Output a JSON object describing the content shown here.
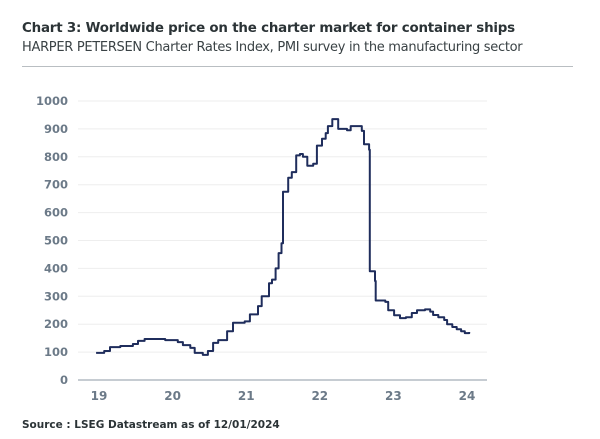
{
  "header": {
    "title": "Chart 3: Worldwide price on the charter market for container ships",
    "subtitle": "HARPER PETERSEN Charter Rates Index, PMI survey in the manufacturing sector"
  },
  "footer": {
    "source": "Source : LSEG Datastream as of 12/01/2024"
  },
  "colors": {
    "line": "#1f2d5c",
    "axis": "#8e9aa6",
    "grid": "#eeeeee",
    "tick_text": "#6c7a88"
  },
  "chart_data": {
    "type": "line",
    "title": "Chart 3: Worldwide price on the charter market for container ships",
    "subtitle": "HARPER PETERSEN Charter Rates Index, PMI survey in the manufacturing sector",
    "xlabel": "",
    "ylabel": "",
    "xlim": [
      2018.7,
      2024.27
    ],
    "ylim": [
      0,
      1000
    ],
    "grid": true,
    "legend": "none",
    "x_ticks": [
      2019,
      2020,
      2021,
      2022,
      2023,
      2024
    ],
    "x_tick_labels": [
      "19",
      "20",
      "21",
      "22",
      "23",
      "24"
    ],
    "y_ticks": [
      0,
      100,
      200,
      300,
      400,
      500,
      600,
      700,
      800,
      900,
      1000
    ],
    "y_tick_labels": [
      "0",
      "100",
      "200",
      "300",
      "400",
      "500",
      "600",
      "700",
      "800",
      "900",
      "1000"
    ],
    "series": [
      {
        "name": "HARPER PETERSEN Charter Rates Index",
        "x": [
          2018.96,
          2019.07,
          2019.15,
          2019.29,
          2019.46,
          2019.53,
          2019.62,
          2019.9,
          2020.07,
          2020.14,
          2020.24,
          2020.3,
          2020.41,
          2020.48,
          2020.55,
          2020.62,
          2020.74,
          2020.82,
          2020.98,
          2021.05,
          2021.16,
          2021.21,
          2021.31,
          2021.35,
          2021.4,
          2021.44,
          2021.48,
          2021.5,
          2021.57,
          2021.62,
          2021.68,
          2021.73,
          2021.77,
          2021.83,
          2021.91,
          2021.96,
          2022.03,
          2022.08,
          2022.11,
          2022.17,
          2022.23,
          2022.25,
          2022.37,
          2022.42,
          2022.49,
          2022.57,
          2022.6,
          2022.67,
          2022.68,
          2022.75,
          2022.76,
          2022.89,
          2022.93,
          2023.01,
          2023.09,
          2023.17,
          2023.25,
          2023.32,
          2023.43,
          2023.5,
          2023.54,
          2023.61,
          2023.69,
          2023.73,
          2023.8,
          2023.86,
          2023.92,
          2023.97,
          2024.03
        ],
        "values": [
          97,
          104,
          118,
          122,
          129,
          140,
          147,
          143,
          136,
          125,
          115,
          97,
          90,
          104,
          133,
          143,
          175,
          205,
          210,
          235,
          265,
          300,
          347,
          360,
          400,
          455,
          490,
          675,
          725,
          745,
          805,
          810,
          800,
          768,
          775,
          840,
          865,
          885,
          910,
          935,
          935,
          900,
          895,
          910,
          910,
          893,
          845,
          825,
          390,
          355,
          285,
          280,
          250,
          232,
          222,
          225,
          240,
          250,
          253,
          245,
          233,
          225,
          215,
          200,
          190,
          182,
          175,
          168,
          172
        ]
      }
    ]
  }
}
